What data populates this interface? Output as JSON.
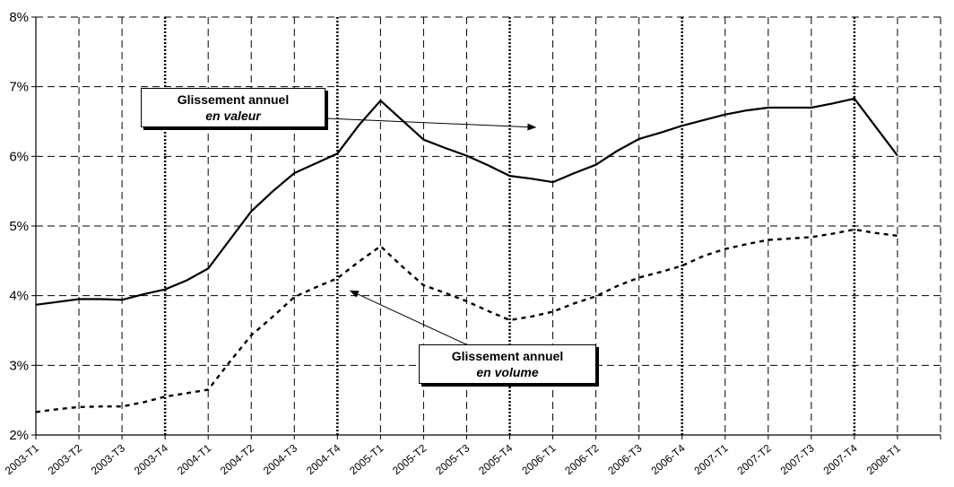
{
  "chart_data": {
    "type": "line",
    "categories": [
      "2003-T1",
      "2003-T2",
      "2003-T3",
      "2003-T4",
      "2004-T1",
      "2004-T2",
      "2004-T3",
      "2004-T4",
      "2005-T1",
      "2005-T2",
      "2005-T3",
      "2005-T4",
      "2006-T1",
      "2006-T2",
      "2006-T3",
      "2006-T4",
      "2007-T1",
      "2007-T2",
      "2007-T3",
      "2007-T4",
      "2008-T1"
    ],
    "x": [
      0,
      0.5,
      1,
      1.5,
      2,
      2.5,
      3,
      3.5,
      4,
      4.5,
      5,
      5.5,
      6,
      6.5,
      7,
      7.5,
      8,
      8.5,
      9,
      9.5,
      10,
      10.5,
      11,
      11.5,
      12,
      12.5,
      13,
      13.5,
      14,
      14.5,
      15,
      15.5,
      16,
      16.5,
      17,
      17.5,
      18,
      18.5,
      19,
      19.5,
      20
    ],
    "series": [
      {
        "line_style": "solid",
        "values": [
          3.87,
          3.91,
          3.95,
          3.95,
          3.94,
          4.02,
          4.09,
          4.22,
          4.39,
          4.8,
          5.21,
          5.5,
          5.76,
          5.9,
          6.04,
          6.45,
          6.8,
          6.52,
          6.24,
          6.12,
          6.01,
          5.87,
          5.72,
          5.68,
          5.63,
          5.76,
          5.88,
          6.08,
          6.25,
          6.34,
          6.44,
          6.52,
          6.6,
          6.66,
          6.7,
          6.7,
          6.7,
          6.76,
          6.83,
          6.42,
          6.01
        ]
      },
      {
        "line_style": "dashed",
        "values": [
          2.33,
          2.37,
          2.4,
          2.41,
          2.41,
          2.47,
          2.55,
          2.6,
          2.65,
          3.05,
          3.43,
          3.7,
          3.98,
          4.12,
          4.25,
          4.49,
          4.71,
          4.42,
          4.15,
          4.04,
          3.92,
          3.78,
          3.65,
          3.7,
          3.77,
          3.89,
          3.99,
          4.14,
          4.26,
          4.34,
          4.43,
          4.57,
          4.67,
          4.74,
          4.8,
          4.82,
          4.84,
          4.89,
          4.95,
          4.9,
          4.86
        ]
      }
    ],
    "ylim": [
      2,
      8
    ],
    "yticks": [
      2,
      3,
      4,
      5,
      6,
      7,
      8
    ],
    "ytick_labels": [
      "2%",
      "3%",
      "4%",
      "5%",
      "6%",
      "7%",
      "8%"
    ],
    "grid": true,
    "annotations": [
      {
        "line1": "Glissement annuel",
        "line2": "en valeur"
      },
      {
        "line1": "Glissement annuel",
        "line2": "en volume"
      }
    ]
  }
}
